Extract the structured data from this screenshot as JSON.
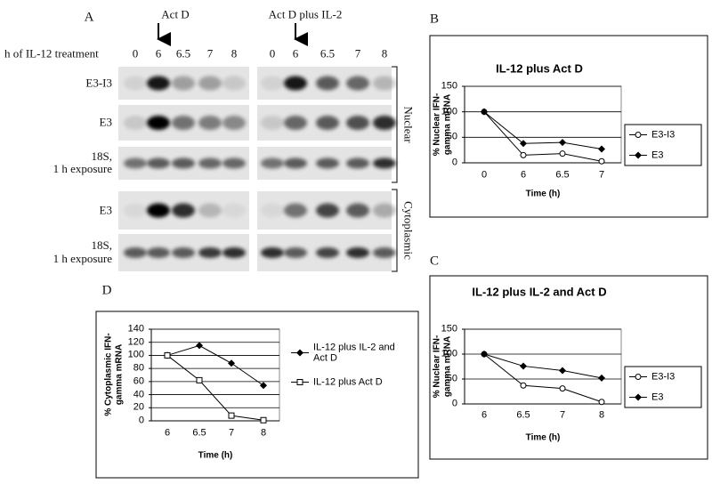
{
  "figure_labels": [
    "A",
    "B",
    "C",
    "D"
  ],
  "panel_a": {
    "treatments": [
      "Act D",
      "Act D plus IL-2"
    ],
    "time_label": "h of IL-12 treatment",
    "lanes": [
      [
        "0",
        "6",
        "6.5",
        "7",
        "8"
      ],
      [
        "0",
        "6",
        "6.5",
        "7",
        "8"
      ]
    ],
    "rows": [
      "E3-I3",
      "E3",
      "18S,\n1 h exposure",
      "E3",
      "18S,\n1 h exposure"
    ],
    "fractions": [
      "Nuclear",
      "Cytoplasmic"
    ]
  },
  "chart_data": [
    {
      "type": "line",
      "title": "IL-12 plus Act D",
      "x_label": "Time (h)",
      "y_label": "% Nuclear IFN-\ngamma mRNA",
      "categories": [
        "0",
        "6",
        "6.5",
        "7"
      ],
      "series": [
        {
          "name": "E3-I3",
          "color": "#000000",
          "marker": "open-circle",
          "values": [
            100,
            15,
            18,
            3
          ]
        },
        {
          "name": "E3",
          "color": "#000000",
          "marker": "filled-diamond",
          "values": [
            100,
            38,
            40,
            27
          ]
        }
      ],
      "ylim": [
        0,
        150
      ],
      "yticks": [
        0,
        50,
        100,
        150
      ],
      "grid": true,
      "legend": "right",
      "legend_frame": true
    },
    {
      "type": "line",
      "title": "IL-12 plus IL-2 and Act D",
      "x_label": "Time (h)",
      "y_label": "% Nuclear IFN-\ngamma mRNA",
      "categories": [
        "6",
        "6.5",
        "7",
        "8"
      ],
      "series": [
        {
          "name": "E3-I3",
          "color": "#000000",
          "marker": "open-circle",
          "values": [
            100,
            37,
            31,
            4
          ]
        },
        {
          "name": "E3",
          "color": "#000000",
          "marker": "filled-diamond",
          "values": [
            100,
            76,
            67,
            52
          ]
        }
      ],
      "ylim": [
        0,
        150
      ],
      "yticks": [
        0,
        50,
        100,
        150
      ],
      "grid": true,
      "legend": "right",
      "legend_frame": true
    },
    {
      "type": "line",
      "x_label": "Time (h)",
      "y_label": "% Cytoplasmic IFN-\ngamma mRNA",
      "categories": [
        "6",
        "6.5",
        "7",
        "8"
      ],
      "series": [
        {
          "name": "IL-12 plus IL-2 and\nAct D",
          "color": "#000000",
          "marker": "filled-diamond",
          "values": [
            100,
            115,
            88,
            54
          ]
        },
        {
          "name": "IL-12 plus Act D",
          "color": "#000000",
          "marker": "open-square",
          "values": [
            100,
            62,
            8,
            1
          ]
        }
      ],
      "ylim": [
        0,
        140
      ],
      "yticks": [
        0,
        20,
        40,
        60,
        80,
        100,
        120,
        140
      ],
      "grid": true,
      "legend": "right",
      "legend_frame": false
    }
  ]
}
